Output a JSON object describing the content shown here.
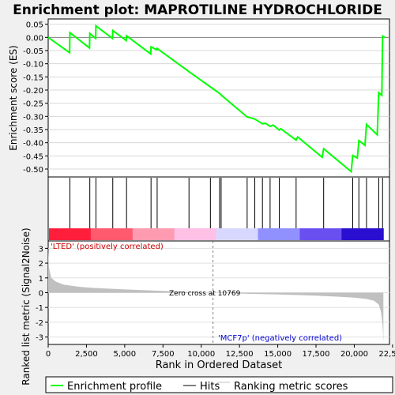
{
  "chart_data": [
    {
      "type": "line",
      "title": "Enrichment plot: MAPROTILINE HYDROCHLORIDE",
      "ylabel": "Enrichment score (ES)",
      "ylim": [
        -0.53,
        0.07
      ],
      "yticks": [
        0.05,
        0.0,
        -0.05,
        -0.1,
        -0.15,
        -0.2,
        -0.25,
        -0.3,
        -0.35,
        -0.4,
        -0.45,
        -0.5
      ],
      "ytick_labels": [
        "0.05",
        "0.00",
        "-0.05",
        "-0.10",
        "-0.15",
        "-0.20",
        "-0.25",
        "-0.30",
        "-0.35",
        "-0.40",
        "-0.45",
        "-0.50"
      ],
      "xlim": [
        0,
        22300
      ],
      "grid": true,
      "series": [
        {
          "name": "Enrichment profile",
          "color": "#00ff00",
          "x": [
            0,
            1400,
            1420,
            2700,
            2720,
            3100,
            3120,
            4200,
            4220,
            5100,
            5120,
            6700,
            6720,
            7100,
            7120,
            9200,
            10600,
            11200,
            11300,
            13000,
            13500,
            14000,
            14200,
            14500,
            14700,
            15100,
            15200,
            16200,
            16300,
            17900,
            18000,
            19800,
            19900,
            20200,
            20300,
            20700,
            20800,
            21500,
            21600,
            21800,
            21850,
            22000
          ],
          "y": [
            0.0,
            -0.058,
            0.018,
            -0.04,
            0.015,
            -0.004,
            0.044,
            -0.004,
            0.026,
            -0.012,
            0.006,
            -0.063,
            -0.036,
            -0.047,
            -0.042,
            -0.13,
            -0.188,
            -0.213,
            -0.219,
            -0.302,
            -0.31,
            -0.328,
            -0.326,
            -0.338,
            -0.333,
            -0.352,
            -0.347,
            -0.39,
            -0.378,
            -0.455,
            -0.423,
            -0.51,
            -0.448,
            -0.458,
            -0.392,
            -0.41,
            -0.33,
            -0.37,
            -0.21,
            -0.22,
            0.005,
            0.0
          ]
        }
      ]
    },
    {
      "type": "scatter",
      "series": [
        {
          "name": "Hits",
          "color": "#000000",
          "x": [
            1420,
            2720,
            3120,
            4220,
            5120,
            6720,
            7120,
            9200,
            10600,
            11200,
            11300,
            13000,
            13500,
            14000,
            14500,
            15100,
            16200,
            18000,
            19900,
            20300,
            20800,
            21600,
            21850
          ]
        }
      ],
      "gradient_colors": [
        "#ff1f3c",
        "#ff5a6e",
        "#ff9bb0",
        "#ffc0e6",
        "#d8d8ff",
        "#9090ff",
        "#6a4ff0",
        "#2a0fd0"
      ]
    },
    {
      "type": "area",
      "ylabel": "Ranked list metric (Signal2Noise)",
      "xlabel": "Rank in Ordered Dataset",
      "ylim": [
        -3.5,
        3.5
      ],
      "yticks": [
        3,
        2,
        1,
        0,
        -1,
        -2,
        -3
      ],
      "xlim": [
        0,
        22300
      ],
      "xticks": [
        0,
        2500,
        5000,
        7500,
        10000,
        12500,
        15000,
        17500,
        20000,
        22500
      ],
      "xtick_labels": [
        "0",
        "2,500",
        "5,000",
        "7,500",
        "10,000",
        "12,500",
        "15,000",
        "17,500",
        "20,000",
        "22,500"
      ],
      "grid": true,
      "zero_cross": 10769,
      "annotations": {
        "positive": "'LTED' (positively correlated)",
        "negative": "'MCF7p' (negatively correlated)",
        "zero": "Zero cross at 10769"
      },
      "series": [
        {
          "name": "Ranking metric scores",
          "color": "#c0c0c0",
          "x": [
            0,
            50,
            200,
            500,
            1000,
            2000,
            3000,
            5000,
            7000,
            9000,
            10769,
            12500,
            15000,
            17500,
            19000,
            20000,
            20800,
            21300,
            21600,
            21750,
            21850,
            21900
          ],
          "y": [
            3.0,
            1.7,
            1.0,
            0.75,
            0.55,
            0.4,
            0.32,
            0.22,
            0.14,
            0.06,
            0.0,
            -0.06,
            -0.12,
            -0.2,
            -0.27,
            -0.33,
            -0.42,
            -0.55,
            -0.8,
            -1.3,
            -2.2,
            -3.4
          ]
        }
      ]
    }
  ],
  "legend": {
    "items": [
      {
        "label": "Enrichment profile",
        "color": "#00ff00"
      },
      {
        "label": "Hits",
        "color": "#000000"
      },
      {
        "label": "Ranking metric scores",
        "color": "#c0c0c0"
      }
    ]
  }
}
